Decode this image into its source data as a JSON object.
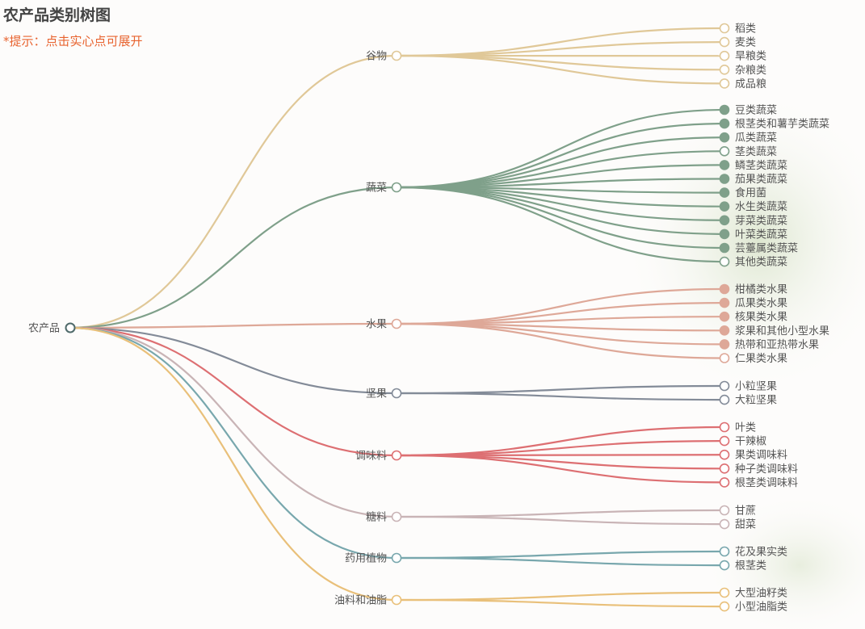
{
  "title": "农产品类别树图",
  "hint": "*提示：点击实心点可展开",
  "tree": {
    "root": "农产品",
    "categories": [
      {
        "name": "谷物",
        "color": "#e0c898",
        "children": [
          {
            "name": "稻类",
            "filled": false
          },
          {
            "name": "麦类",
            "filled": false
          },
          {
            "name": "旱粮类",
            "filled": false
          },
          {
            "name": "杂粮类",
            "filled": false
          },
          {
            "name": "成品粮",
            "filled": false
          }
        ]
      },
      {
        "name": "蔬菜",
        "color": "#7fa08a",
        "children": [
          {
            "name": "豆类蔬菜",
            "filled": true
          },
          {
            "name": "根茎类和薯芋类蔬菜",
            "filled": true
          },
          {
            "name": "瓜类蔬菜",
            "filled": true
          },
          {
            "name": "茎类蔬菜",
            "filled": false
          },
          {
            "name": "鳞茎类蔬菜",
            "filled": true
          },
          {
            "name": "茄果类蔬菜",
            "filled": true
          },
          {
            "name": "食用菌",
            "filled": true
          },
          {
            "name": "水生类蔬菜",
            "filled": true
          },
          {
            "name": "芽菜类蔬菜",
            "filled": true
          },
          {
            "name": "叶菜类蔬菜",
            "filled": true
          },
          {
            "name": "芸薹属类蔬菜",
            "filled": true
          },
          {
            "name": "其他类蔬菜",
            "filled": false
          }
        ]
      },
      {
        "name": "水果",
        "color": "#dea898",
        "children": [
          {
            "name": "柑橘类水果",
            "filled": true
          },
          {
            "name": "瓜果类水果",
            "filled": true
          },
          {
            "name": "核果类水果",
            "filled": true
          },
          {
            "name": "浆果和其他小型水果",
            "filled": true
          },
          {
            "name": "热带和亚热带水果",
            "filled": true
          },
          {
            "name": "仁果类水果",
            "filled": false
          }
        ]
      },
      {
        "name": "坚果",
        "color": "#838b98",
        "children": [
          {
            "name": "小粒坚果",
            "filled": false
          },
          {
            "name": "大粒坚果",
            "filled": false
          }
        ]
      },
      {
        "name": "调味料",
        "color": "#dd6f72",
        "children": [
          {
            "name": "叶类",
            "filled": false
          },
          {
            "name": "干辣椒",
            "filled": false
          },
          {
            "name": "果类调味料",
            "filled": false
          },
          {
            "name": "种子类调味料",
            "filled": false
          },
          {
            "name": "根茎类调味料",
            "filled": false
          }
        ]
      },
      {
        "name": "糖料",
        "color": "#c9b4b6",
        "children": [
          {
            "name": "甘蔗",
            "filled": false
          },
          {
            "name": "甜菜",
            "filled": false
          }
        ]
      },
      {
        "name": "药用植物",
        "color": "#78a7ad",
        "children": [
          {
            "name": "花及果实类",
            "filled": false
          },
          {
            "name": "根茎类",
            "filled": false
          }
        ]
      },
      {
        "name": "油料和油脂",
        "color": "#e9c07a",
        "children": [
          {
            "name": "大型油籽类",
            "filled": false
          },
          {
            "name": "小型油脂类",
            "filled": false
          }
        ]
      }
    ]
  }
}
